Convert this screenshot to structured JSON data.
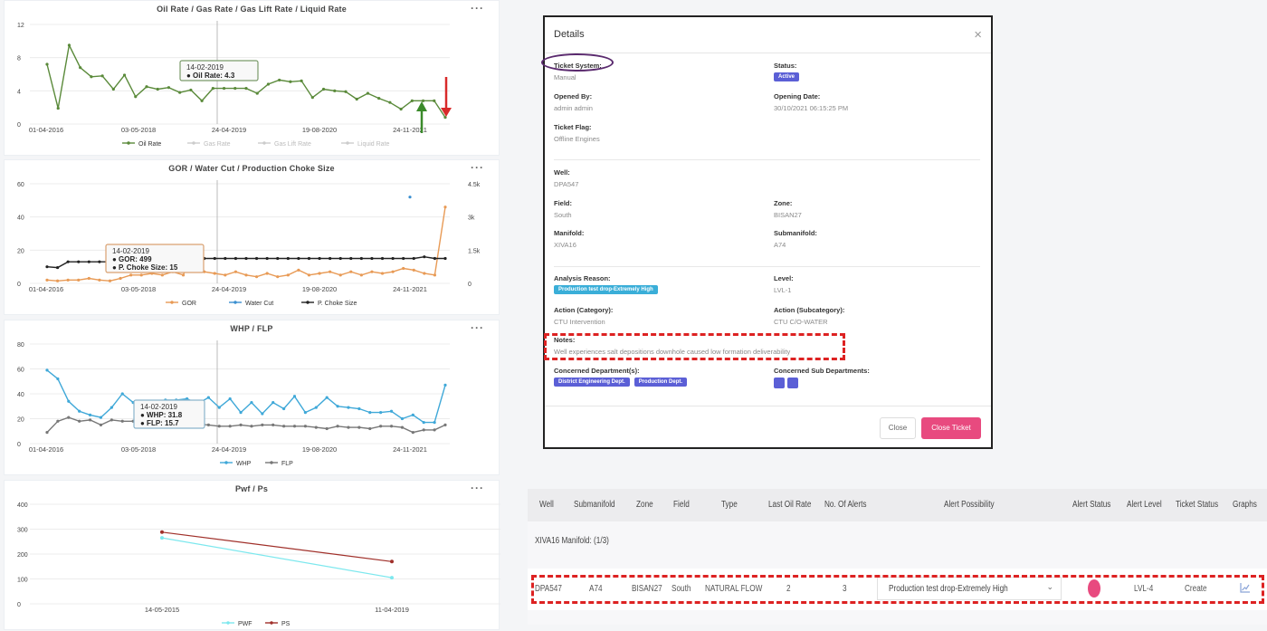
{
  "charts": [
    {
      "title": "Oil Rate / Gas Rate / Gas Lift Rate / Liquid Rate",
      "menu": "···",
      "yticks": [
        "12",
        "8",
        "4",
        "0"
      ],
      "xticks": [
        "01-04-2016",
        "03-05-2018",
        "24-04-2019",
        "19-08-2020",
        "24-11-2021"
      ],
      "legend": [
        "Oil Rate",
        "Gas Rate",
        "Gas Lift Rate",
        "Liquid Rate"
      ],
      "tooltip": {
        "date": "14-02-2019",
        "line1": "Oil Rate: 4.3"
      }
    },
    {
      "title": "GOR / Water Cut / Production Choke Size",
      "menu": "···",
      "yticks": [
        "60",
        "40",
        "20",
        "0"
      ],
      "yticks_right": [
        "4.5k",
        "3k",
        "1.5k",
        "0"
      ],
      "xticks": [
        "01-04-2016",
        "03-05-2018",
        "24-04-2019",
        "19-08-2020",
        "24-11-2021"
      ],
      "legend": [
        "GOR",
        "Water Cut",
        "P. Choke Size"
      ],
      "tooltip": {
        "date": "14-02-2019",
        "line1": "GOR: 499",
        "line2": "P. Choke Size: 15"
      }
    },
    {
      "title": "WHP / FLP",
      "menu": "···",
      "yticks": [
        "80",
        "60",
        "40",
        "20",
        "0"
      ],
      "xticks": [
        "01-04-2016",
        "03-05-2018",
        "24-04-2019",
        "19-08-2020",
        "24-11-2021"
      ],
      "legend": [
        "WHP",
        "FLP"
      ],
      "tooltip": {
        "date": "14-02-2019",
        "line1": "WHP: 31.8",
        "line2": "FLP: 15.7"
      }
    },
    {
      "title": "Pwf / Ps",
      "menu": "···",
      "yticks": [
        "400",
        "300",
        "200",
        "100",
        "0"
      ],
      "xticks": [
        "14-05-2015",
        "11-04-2019"
      ],
      "legend": [
        "PWF",
        "PS"
      ]
    }
  ],
  "chart_data": [
    {
      "type": "line",
      "title": "Oil Rate / Gas Rate / Gas Lift Rate / Liquid Rate",
      "ylim": [
        0,
        12
      ],
      "x_start": "01-04-2016",
      "x_end": "24-11-2021",
      "series": [
        {
          "name": "Oil Rate",
          "color": "#5a8a3a",
          "values": [
            7.2,
            1.9,
            9.5,
            6.8,
            5.7,
            5.8,
            4.2,
            5.9,
            3.3,
            4.5,
            4.2,
            4.4,
            3.8,
            4.1,
            2.8,
            4.3,
            4.3,
            4.3,
            4.3,
            3.7,
            4.8,
            5.3,
            5.1,
            5.2,
            3.2,
            4.2,
            4.0,
            3.9,
            3.0,
            3.7,
            3.1,
            2.6,
            1.8,
            2.8,
            2.8,
            2.8,
            0.8
          ]
        },
        {
          "name": "Gas Rate",
          "values": []
        },
        {
          "name": "Gas Lift Rate",
          "values": []
        },
        {
          "name": "Liquid Rate",
          "values": []
        }
      ]
    },
    {
      "type": "line",
      "title": "GOR / Water Cut / Production Choke Size",
      "ylim": [
        0,
        60
      ],
      "y2lim": [
        0,
        4500
      ],
      "series": [
        {
          "name": "GOR",
          "color": "#e89a55",
          "values": [
            2,
            1.5,
            2,
            2,
            3,
            2,
            1.5,
            3,
            5,
            5,
            6,
            5,
            7,
            5,
            20,
            7,
            6,
            5,
            7,
            5,
            4,
            6,
            4,
            5,
            8,
            5,
            6,
            7,
            5,
            7,
            5,
            7,
            6,
            7,
            9,
            8,
            6,
            5,
            46
          ]
        },
        {
          "name": "Water Cut",
          "color": "#3a8fd0",
          "values": [
            3900
          ]
        },
        {
          "name": "P. Choke Size",
          "color": "#222",
          "values": [
            10,
            9.5,
            13,
            13,
            13,
            13,
            13,
            13,
            15,
            15,
            15,
            15,
            15,
            15,
            15,
            15,
            15,
            15,
            15,
            15,
            15,
            15,
            15,
            15,
            15,
            15,
            15,
            15,
            15,
            15,
            15,
            15,
            15,
            15,
            15,
            15,
            16,
            15,
            15
          ]
        }
      ]
    },
    {
      "type": "line",
      "title": "WHP / FLP",
      "ylim": [
        0,
        80
      ],
      "series": [
        {
          "name": "WHP",
          "color": "#3fa8d8",
          "values": [
            59,
            52,
            34,
            26,
            23,
            21,
            29,
            40,
            33,
            32,
            30,
            35,
            35,
            36,
            32,
            37,
            29,
            36,
            25,
            33,
            24,
            33,
            28,
            38,
            25,
            29,
            37,
            30,
            29,
            28,
            25,
            25,
            26,
            20,
            23,
            17,
            17,
            47
          ]
        },
        {
          "name": "FLP",
          "color": "#777",
          "values": [
            9,
            18,
            21,
            18,
            19,
            15,
            19,
            18,
            18,
            17,
            17,
            19,
            16,
            17,
            15.7,
            15,
            14,
            14,
            15,
            14,
            15,
            15,
            14,
            14,
            14,
            13,
            12,
            14,
            13,
            13,
            12,
            14,
            14,
            13,
            9,
            11,
            11,
            15
          ]
        }
      ]
    },
    {
      "type": "line",
      "title": "Pwf / Ps",
      "ylim": [
        0,
        400
      ],
      "categories": [
        "14-05-2015",
        "11-04-2019"
      ],
      "series": [
        {
          "name": "PWF",
          "color": "#7de8ee",
          "values": [
            265,
            105
          ]
        },
        {
          "name": "PS",
          "color": "#a0302a",
          "values": [
            288,
            170
          ]
        }
      ]
    }
  ],
  "modal": {
    "title": "Details",
    "close_icon": "×",
    "ticket_system_label": "Ticket System:",
    "ticket_system": "Manual",
    "status_label": "Status:",
    "status": "Active",
    "opened_by_label": "Opened By:",
    "opened_by": "admin admin",
    "opening_date_label": "Opening Date:",
    "opening_date": "30/10/2021 06:15:25 PM",
    "ticket_flag_label": "Ticket Flag:",
    "ticket_flag": "Offline Engines",
    "well_label": "Well:",
    "well": "DPA547",
    "field_label": "Field:",
    "field": "South",
    "zone_label": "Zone:",
    "zone": "BISAN27",
    "manifold_label": "Manifold:",
    "manifold": "XIVA16",
    "submanifold_label": "Submanifold:",
    "submanifold": "A74",
    "analysis_reason_label": "Analysis Reason:",
    "analysis_reason": "Production test drop-Extremely High",
    "level_label": "Level:",
    "level": "LVL-1",
    "action_cat_label": "Action (Category):",
    "action_cat": "CTU Intervention",
    "action_subcat_label": "Action (Subcategory):",
    "action_subcat": "CTU C/O-WATER",
    "notes_label": "Notes:",
    "notes": "Well experiences salt depositions downhole caused low formation deliverability",
    "departments_label": "Concerned Department(s):",
    "departments": [
      "District Engineering Dept.",
      "Production Dept."
    ],
    "sub_departments_label": "Concerned Sub Departments:",
    "close_button": "Close",
    "close_ticket_button": "Close Ticket"
  },
  "table": {
    "headers": [
      "Well",
      "Submanifold",
      "Zone",
      "Field",
      "Type",
      "Last Oil Rate",
      "No. Of Alerts",
      "Alert Possibility",
      "Alert Status",
      "Alert Level",
      "Ticket Status",
      "Graphs"
    ],
    "group_label": "XIVA16 Manifold: (1/3)",
    "row": {
      "well": "DPA547",
      "submanifold": "A74",
      "zone": "BISAN27",
      "field": "South",
      "type": "NATURAL FLOW",
      "last_oil_rate": "2",
      "alerts": "3",
      "possibility": "Production test drop-Extremely High",
      "alert_status_color": "#e84a7f",
      "level": "LVL-4",
      "ticket_status": "Create",
      "graph_icon": "chart-icon"
    }
  }
}
